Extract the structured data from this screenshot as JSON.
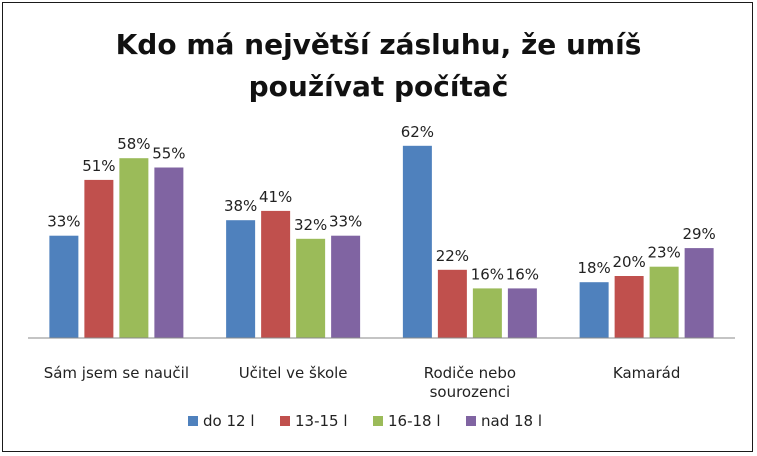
{
  "chart_data": {
    "type": "bar",
    "title_lines": [
      "Kdo má největší zásluhu, že umíš",
      "používat počítač"
    ],
    "categories": [
      [
        "Sám jsem se naučil"
      ],
      [
        "Učitel ve škole"
      ],
      [
        "Rodiče nebo",
        "sourozenci"
      ],
      [
        "Kamarád"
      ]
    ],
    "series": [
      {
        "name": "do 12 l",
        "color": "#4f81bd",
        "values": [
          33,
          38,
          62,
          18
        ],
        "labels": [
          "33%",
          "38%",
          "62%",
          "18%"
        ]
      },
      {
        "name": "13-15 l",
        "color": "#c0504d",
        "values": [
          51,
          41,
          22,
          20
        ],
        "labels": [
          "51%",
          "41%",
          "22%",
          "20%"
        ]
      },
      {
        "name": "16-18 l",
        "color": "#9bbb59",
        "values": [
          58,
          32,
          16,
          23
        ],
        "labels": [
          "58%",
          "32%",
          "16%",
          "23%"
        ]
      },
      {
        "name": "nad 18 l",
        "color": "#8064a2",
        "values": [
          55,
          33,
          16,
          29
        ],
        "labels": [
          "55%",
          "33%",
          "16%",
          "29%"
        ]
      }
    ],
    "ylim": [
      0,
      70
    ],
    "grid": false,
    "legend_position": "bottom"
  }
}
